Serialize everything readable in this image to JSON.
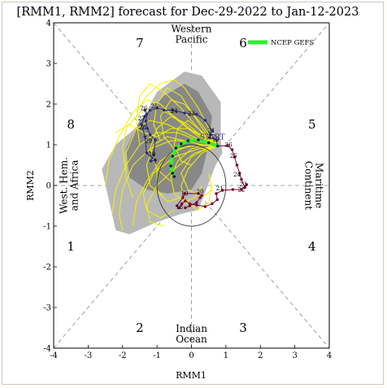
{
  "chart_data": {
    "type": "scatter",
    "title": "[RMM1, RMM2] forecast for Dec-29-2022 to Jan-12-2023",
    "xlabel": "RMM1",
    "ylabel": "RMM2",
    "xlim": [
      -4,
      4
    ],
    "ylim": [
      -4,
      4
    ],
    "xticks": [
      -4,
      -3,
      -2,
      -1,
      0,
      1,
      2,
      3,
      4
    ],
    "yticks": [
      -4,
      -3,
      -2,
      -1,
      0,
      1,
      2,
      3,
      4
    ],
    "grid": false,
    "legend": {
      "placement": "top-right",
      "entries": [
        {
          "label": "NCEP GEFS",
          "color": "#33ee33"
        }
      ]
    },
    "phases": [
      {
        "label": "1",
        "x": -3.5,
        "y": -1.5
      },
      {
        "label": "2",
        "x": -1.5,
        "y": -3.5
      },
      {
        "label": "3",
        "x": 1.5,
        "y": -3.5
      },
      {
        "label": "4",
        "x": 3.5,
        "y": -1.5
      },
      {
        "label": "5",
        "x": 3.5,
        "y": 1.5
      },
      {
        "label": "6",
        "x": 1.5,
        "y": 3.5
      },
      {
        "label": "7",
        "x": -1.5,
        "y": 3.5
      },
      {
        "label": "8",
        "x": -3.5,
        "y": 1.5
      }
    ],
    "regions": [
      {
        "lines": [
          "Western",
          "Pacific"
        ],
        "x": 0,
        "y": 3.72,
        "rotate": 0
      },
      {
        "lines": [
          "Indian",
          "Ocean"
        ],
        "x": 0,
        "y": -3.65,
        "rotate": 0
      },
      {
        "lines": [
          "West. Hem.",
          "and Africa"
        ],
        "x": -3.55,
        "y": 0,
        "rotate": -90
      },
      {
        "lines": [
          "Maritime",
          "Continent"
        ],
        "x": 3.55,
        "y": 0,
        "rotate": 90
      }
    ],
    "start_label": "START",
    "start_point": [
      0.76,
      0.97
    ],
    "observed": {
      "color": "#7a0030",
      "segments": [
        {
          "color": "#2a2a7a",
          "points": [
            [
              -1.35,
              1.85
            ],
            [
              -1.3,
              1.75
            ],
            [
              -1.32,
              1.58
            ],
            [
              -1.28,
              1.4
            ],
            [
              -1.2,
              1.25
            ],
            [
              -1.05,
              1.12
            ],
            [
              -1.1,
              0.75
            ],
            [
              -1.18,
              0.6
            ],
            [
              -1.05,
              0.62
            ],
            [
              -1.3,
              0.8
            ],
            [
              -1.35,
              1.2
            ],
            [
              -1.45,
              1.5
            ],
            [
              -1.35,
              1.7
            ],
            [
              -1.2,
              1.85
            ],
            [
              -1.0,
              1.9
            ],
            [
              -0.8,
              1.85
            ],
            [
              -0.55,
              1.85
            ],
            [
              -0.2,
              1.78
            ],
            [
              0.15,
              1.75
            ],
            [
              0.4,
              1.6
            ],
            [
              0.6,
              1.35
            ],
            [
              0.55,
              1.25
            ],
            [
              0.52,
              1.18
            ],
            [
              0.72,
              1.12
            ],
            [
              0.76,
              0.97
            ]
          ]
        },
        {
          "color": "#7a0030",
          "points": [
            [
              0.76,
              0.97
            ],
            [
              1.05,
              0.98
            ],
            [
              1.18,
              0.88
            ],
            [
              1.25,
              0.7
            ],
            [
              1.32,
              0.5
            ],
            [
              1.4,
              0.3
            ],
            [
              1.45,
              0.15
            ],
            [
              1.55,
              -0.05
            ],
            [
              1.6,
              0.02
            ],
            [
              1.45,
              -0.1
            ],
            [
              1.2,
              -0.1
            ],
            [
              0.9,
              -0.12
            ],
            [
              0.72,
              -0.2
            ],
            [
              0.75,
              -0.35
            ],
            [
              0.6,
              -0.45
            ],
            [
              0.4,
              -0.52
            ],
            [
              0.15,
              -0.48
            ],
            [
              -0.05,
              -0.45
            ],
            [
              -0.18,
              -0.38
            ],
            [
              -0.28,
              -0.45
            ],
            [
              -0.35,
              -0.55
            ],
            [
              -0.42,
              -0.5
            ],
            [
              -0.25,
              -0.3
            ],
            [
              -0.2,
              -0.2
            ],
            [
              0.2,
              -0.2
            ],
            [
              0.3,
              -0.25
            ],
            [
              0.25,
              -0.3
            ],
            [
              0.15,
              -0.42
            ],
            [
              -0.05,
              -0.5
            ],
            [
              -0.18,
              -0.55
            ]
          ]
        }
      ],
      "labels": [
        {
          "t": "26",
          "x": -1.38,
          "y": 1.85
        },
        {
          "t": "25",
          "x": -1.08,
          "y": 1.9
        },
        {
          "t": "24",
          "x": -0.5,
          "y": 1.78
        },
        {
          "t": "23",
          "x": 0.0,
          "y": 1.72
        },
        {
          "t": "27",
          "x": -1.45,
          "y": 1.6
        },
        {
          "t": "28",
          "x": -1.42,
          "y": 1.38
        },
        {
          "t": "29",
          "x": -1.25,
          "y": 1.05
        },
        {
          "t": "30",
          "x": -1.15,
          "y": 0.72
        },
        {
          "t": "1",
          "x": -1.05,
          "y": 0.55
        },
        {
          "t": "21",
          "x": 0.58,
          "y": 1.3
        },
        {
          "t": "22",
          "x": 0.6,
          "y": 1.15
        },
        {
          "t": "19",
          "x": 0.7,
          "y": 1.08
        },
        {
          "t": "26",
          "x": 1.08,
          "y": 0.95
        },
        {
          "t": "25",
          "x": 1.22,
          "y": 0.68
        },
        {
          "t": "24",
          "x": 1.32,
          "y": 0.22
        },
        {
          "t": "23",
          "x": 1.5,
          "y": -0.02
        },
        {
          "t": "22",
          "x": 1.45,
          "y": -0.15
        },
        {
          "t": "21",
          "x": 0.82,
          "y": -0.12
        },
        {
          "t": "20",
          "x": 0.25,
          "y": -0.2
        },
        {
          "t": "19",
          "x": -0.2,
          "y": -0.25
        },
        {
          "t": "18",
          "x": -0.35,
          "y": -0.58
        }
      ]
    },
    "ensemble_color": "#f2f200",
    "ensemble": [
      [
        [
          0.76,
          0.97
        ],
        [
          0.3,
          1.1
        ],
        [
          -0.2,
          1.3
        ],
        [
          -0.7,
          1.5
        ],
        [
          -1.2,
          1.6
        ],
        [
          -1.6,
          1.4
        ],
        [
          -1.9,
          0.8
        ],
        [
          -1.9,
          0.2
        ],
        [
          -1.7,
          -0.3
        ]
      ],
      [
        [
          0.76,
          0.97
        ],
        [
          0.2,
          1.2
        ],
        [
          -0.4,
          1.6
        ],
        [
          -0.9,
          2.0
        ],
        [
          -1.3,
          2.1
        ],
        [
          -1.7,
          1.8
        ],
        [
          -2.1,
          1.2
        ],
        [
          -2.4,
          0.6
        ],
        [
          -2.5,
          0.0
        ]
      ],
      [
        [
          0.76,
          0.97
        ],
        [
          0.4,
          1.0
        ],
        [
          0.0,
          0.9
        ],
        [
          -0.4,
          0.6
        ],
        [
          -0.6,
          0.2
        ],
        [
          -0.5,
          -0.2
        ],
        [
          -0.2,
          -0.4
        ],
        [
          0.1,
          -0.3
        ],
        [
          0.3,
          0.0
        ]
      ],
      [
        [
          0.76,
          0.97
        ],
        [
          0.3,
          0.8
        ],
        [
          -0.1,
          0.4
        ],
        [
          -0.3,
          0.0
        ],
        [
          -0.2,
          -0.4
        ],
        [
          0.2,
          -0.6
        ],
        [
          0.5,
          -0.4
        ],
        [
          0.6,
          0.0
        ]
      ],
      [
        [
          0.76,
          0.97
        ],
        [
          0.2,
          1.4
        ],
        [
          -0.3,
          1.9
        ],
        [
          -0.8,
          2.3
        ],
        [
          -1.2,
          2.5
        ],
        [
          -1.5,
          2.2
        ],
        [
          -1.6,
          1.6
        ],
        [
          -1.5,
          1.0
        ]
      ],
      [
        [
          0.76,
          0.97
        ],
        [
          0.1,
          1.1
        ],
        [
          -0.6,
          1.1
        ],
        [
          -1.2,
          0.9
        ],
        [
          -1.7,
          0.5
        ],
        [
          -2.0,
          -0.1
        ],
        [
          -2.1,
          -0.7
        ],
        [
          -2.0,
          -1.1
        ]
      ],
      [
        [
          0.76,
          0.97
        ],
        [
          0.4,
          1.3
        ],
        [
          0.0,
          1.8
        ],
        [
          -0.3,
          2.2
        ],
        [
          -0.7,
          2.4
        ],
        [
          -1.0,
          2.0
        ],
        [
          -1.1,
          1.5
        ],
        [
          -0.9,
          1.1
        ]
      ],
      [
        [
          0.76,
          0.97
        ],
        [
          0.2,
          0.9
        ],
        [
          -0.5,
          0.7
        ],
        [
          -1.1,
          0.3
        ],
        [
          -1.4,
          -0.2
        ],
        [
          -1.3,
          -0.6
        ],
        [
          -0.9,
          -0.8
        ],
        [
          -0.5,
          -0.6
        ]
      ],
      [
        [
          0.76,
          0.97
        ],
        [
          0.3,
          1.2
        ],
        [
          -0.1,
          1.5
        ],
        [
          -0.6,
          1.7
        ],
        [
          -1.0,
          1.4
        ],
        [
          -1.2,
          0.9
        ],
        [
          -1.0,
          0.4
        ],
        [
          -0.6,
          0.1
        ]
      ],
      [
        [
          0.76,
          0.97
        ],
        [
          0.5,
          1.4
        ],
        [
          0.2,
          1.9
        ],
        [
          -0.2,
          2.4
        ],
        [
          -0.5,
          2.6
        ],
        [
          -0.9,
          2.5
        ],
        [
          -1.3,
          2.2
        ],
        [
          -1.6,
          1.8
        ]
      ],
      [
        [
          0.76,
          0.97
        ],
        [
          0.1,
          0.8
        ],
        [
          -0.5,
          0.4
        ],
        [
          -1.0,
          0.0
        ],
        [
          -1.3,
          -0.5
        ],
        [
          -1.2,
          -0.9
        ],
        [
          -0.8,
          -1.0
        ]
      ],
      [
        [
          0.76,
          0.97
        ],
        [
          0.2,
          1.1
        ],
        [
          -0.4,
          1.3
        ],
        [
          -1.0,
          1.3
        ],
        [
          -1.5,
          1.0
        ],
        [
          -1.9,
          0.5
        ],
        [
          -2.2,
          -0.1
        ],
        [
          -2.3,
          -0.7
        ]
      ],
      [
        [
          0.76,
          0.97
        ],
        [
          0.4,
          0.9
        ],
        [
          0.0,
          0.7
        ],
        [
          -0.3,
          0.3
        ],
        [
          -0.1,
          -0.1
        ],
        [
          0.3,
          -0.3
        ],
        [
          0.6,
          -0.1
        ],
        [
          0.5,
          0.3
        ]
      ],
      [
        [
          0.76,
          0.97
        ],
        [
          0.3,
          1.0
        ],
        [
          -0.2,
          1.1
        ],
        [
          -0.7,
          1.2
        ],
        [
          -1.1,
          1.0
        ],
        [
          -1.3,
          0.5
        ],
        [
          -1.2,
          0.0
        ],
        [
          -0.8,
          -0.3
        ]
      ],
      [
        [
          0.76,
          0.97
        ],
        [
          0.1,
          1.3
        ],
        [
          -0.5,
          1.7
        ],
        [
          -1.0,
          1.9
        ],
        [
          -1.5,
          1.8
        ],
        [
          -1.9,
          1.4
        ],
        [
          -2.0,
          0.9
        ],
        [
          -1.9,
          0.3
        ]
      ],
      [
        [
          0.76,
          0.97
        ],
        [
          0.5,
          1.1
        ],
        [
          0.2,
          1.4
        ],
        [
          -0.1,
          1.6
        ],
        [
          -0.4,
          1.4
        ],
        [
          -0.5,
          1.0
        ],
        [
          -0.3,
          0.6
        ],
        [
          0.0,
          0.5
        ]
      ],
      [
        [
          0.76,
          0.97
        ],
        [
          0.2,
          1.0
        ],
        [
          -0.4,
          0.9
        ],
        [
          -0.9,
          0.6
        ],
        [
          -1.3,
          0.1
        ],
        [
          -1.6,
          -0.4
        ],
        [
          -1.7,
          -1.0
        ]
      ],
      [
        [
          0.76,
          0.97
        ],
        [
          0.3,
          1.5
        ],
        [
          -0.2,
          2.0
        ],
        [
          -0.6,
          2.1
        ],
        [
          -0.9,
          1.7
        ],
        [
          -0.8,
          1.2
        ],
        [
          -0.5,
          0.9
        ]
      ],
      [
        [
          0.76,
          0.97
        ],
        [
          0.0,
          1.0
        ],
        [
          -0.6,
          0.8
        ],
        [
          -1.0,
          0.4
        ],
        [
          -1.0,
          -0.1
        ],
        [
          -0.7,
          -0.4
        ],
        [
          -0.3,
          -0.3
        ]
      ],
      [
        [
          0.76,
          0.97
        ],
        [
          0.4,
          1.2
        ],
        [
          -0.1,
          1.4
        ],
        [
          -0.6,
          1.4
        ],
        [
          -1.0,
          1.2
        ],
        [
          -1.4,
          1.3
        ],
        [
          -1.8,
          1.5
        ],
        [
          -2.2,
          1.3
        ]
      ]
    ],
    "shading": {
      "outer_color": "#b4b4b4",
      "inner_color": "#858585",
      "outer": [
        [
          0.3,
          2.7
        ],
        [
          0.85,
          2.05
        ],
        [
          0.85,
          1.1
        ],
        [
          0.9,
          0.8
        ],
        [
          0.7,
          0.5
        ],
        [
          0.2,
          -0.6
        ],
        [
          -0.3,
          -0.7
        ],
        [
          -1.0,
          -0.9
        ],
        [
          -1.8,
          -1.2
        ],
        [
          -2.2,
          -1.1
        ],
        [
          -2.6,
          0.4
        ],
        [
          -2.2,
          1.0
        ],
        [
          -1.5,
          1.5
        ],
        [
          -1.0,
          2.3
        ],
        [
          -0.2,
          2.8
        ]
      ],
      "inner": [
        [
          0.2,
          2.3
        ],
        [
          0.6,
          1.7
        ],
        [
          0.5,
          1.0
        ],
        [
          0.3,
          0.3
        ],
        [
          0.0,
          -0.1
        ],
        [
          -0.7,
          -0.2
        ],
        [
          -1.3,
          -0.1
        ],
        [
          -1.8,
          0.2
        ],
        [
          -1.9,
          0.9
        ],
        [
          -1.5,
          1.6
        ],
        [
          -0.8,
          2.2
        ],
        [
          -0.2,
          2.5
        ]
      ]
    },
    "gefs_mean": [
      [
        0.76,
        0.97
      ],
      [
        0.5,
        1.05
      ],
      [
        0.2,
        1.12
      ],
      [
        -0.1,
        1.1
      ],
      [
        -0.3,
        1.02
      ],
      [
        -0.45,
        0.92
      ],
      [
        -0.55,
        0.72
      ],
      [
        -0.6,
        0.48
      ],
      [
        -0.55,
        0.3
      ],
      [
        -0.5,
        0.22
      ]
    ]
  }
}
